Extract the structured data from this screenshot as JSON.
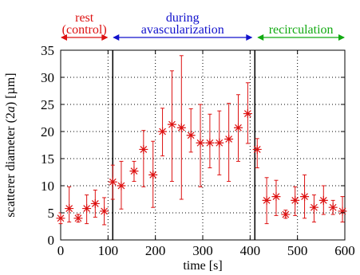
{
  "chart_data": {
    "type": "scatter",
    "xlabel": "time [s]",
    "ylabel_parts": [
      "scatterer diameter (2",
      "a",
      ") [",
      "µ",
      "m]"
    ],
    "xlim": [
      0,
      600
    ],
    "ylim": [
      0,
      35
    ],
    "x_ticks": [
      0,
      100,
      200,
      300,
      400,
      500,
      600
    ],
    "y_ticks": [
      0,
      5,
      10,
      15,
      20,
      25,
      30,
      35
    ],
    "grid": true,
    "marker": "asterisk",
    "color": "#dd1111",
    "phase_boundaries": [
      110,
      410
    ],
    "phases": [
      {
        "lines": [
          "rest",
          "(control)"
        ],
        "color": "#dd1111",
        "x_start": 0,
        "x_end": 100
      },
      {
        "lines": [
          "during",
          "avascularization"
        ],
        "color": "#1111cc",
        "x_start": 110,
        "x_end": 405
      },
      {
        "lines": [
          "recirculation"
        ],
        "color": "#11aa11",
        "x_start": 415,
        "x_end": 600
      }
    ],
    "series": [
      {
        "points": [
          {
            "x": 0,
            "y": 4.0,
            "low": 3.0,
            "high": 5.0
          },
          {
            "x": 18,
            "y": 5.8,
            "low": 3.3,
            "high": 9.8
          },
          {
            "x": 37,
            "y": 4.0,
            "low": 3.3,
            "high": 4.7
          },
          {
            "x": 55,
            "y": 5.8,
            "low": 3.0,
            "high": 8.3
          },
          {
            "x": 73,
            "y": 6.7,
            "low": 4.2,
            "high": 9.2
          },
          {
            "x": 92,
            "y": 5.3,
            "low": 2.8,
            "high": 7.8
          },
          {
            "x": 110,
            "y": 10.7,
            "low": 7.5,
            "high": 13.8
          },
          {
            "x": 128,
            "y": 10.0,
            "low": 5.7,
            "high": 14.5
          },
          {
            "x": 155,
            "y": 12.7,
            "low": 10.8,
            "high": 14.5
          },
          {
            "x": 175,
            "y": 16.7,
            "low": 9.8,
            "high": 20.2
          },
          {
            "x": 195,
            "y": 12.0,
            "low": 6.0,
            "high": 18.2
          },
          {
            "x": 215,
            "y": 20.0,
            "low": 15.5,
            "high": 24.3
          },
          {
            "x": 235,
            "y": 21.3,
            "low": 10.8,
            "high": 31.2
          },
          {
            "x": 255,
            "y": 20.7,
            "low": 7.5,
            "high": 34.0
          },
          {
            "x": 275,
            "y": 19.3,
            "low": 16.2,
            "high": 24.2
          },
          {
            "x": 295,
            "y": 17.9,
            "low": 9.8,
            "high": 25.0
          },
          {
            "x": 315,
            "y": 17.9,
            "low": 13.3,
            "high": 23.2
          },
          {
            "x": 335,
            "y": 17.9,
            "low": 12.0,
            "high": 23.8
          },
          {
            "x": 355,
            "y": 18.6,
            "low": 10.8,
            "high": 25.2
          },
          {
            "x": 375,
            "y": 20.7,
            "low": 14.5,
            "high": 26.8
          },
          {
            "x": 395,
            "y": 23.3,
            "low": 17.8,
            "high": 29.0
          },
          {
            "x": 415,
            "y": 16.7,
            "low": 13.3,
            "high": 18.7
          },
          {
            "x": 435,
            "y": 7.3,
            "low": 3.0,
            "high": 11.5
          },
          {
            "x": 455,
            "y": 8.0,
            "low": 4.5,
            "high": 11.0
          },
          {
            "x": 475,
            "y": 4.7,
            "low": 4.0,
            "high": 5.5
          },
          {
            "x": 495,
            "y": 7.3,
            "low": 4.5,
            "high": 9.8
          },
          {
            "x": 515,
            "y": 8.0,
            "low": 4.0,
            "high": 12.0
          },
          {
            "x": 535,
            "y": 6.0,
            "low": 3.3,
            "high": 8.3
          },
          {
            "x": 555,
            "y": 7.3,
            "low": 4.7,
            "high": 10.0
          },
          {
            "x": 575,
            "y": 6.0,
            "low": 4.7,
            "high": 7.3
          },
          {
            "x": 595,
            "y": 5.3,
            "low": 3.3,
            "high": 8.0
          }
        ]
      }
    ]
  }
}
